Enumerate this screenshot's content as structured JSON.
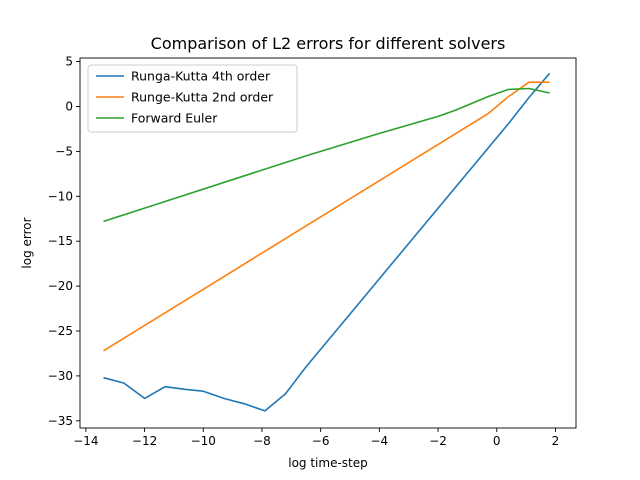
{
  "chart_data": {
    "type": "line",
    "title": "Comparison of L2 errors for different solvers",
    "xlabel": "log time-step",
    "ylabel": "log error",
    "xlim": [
      -14.2,
      2.7
    ],
    "ylim": [
      -35.8,
      5.4
    ],
    "xticks": [
      -14,
      -12,
      -10,
      -8,
      -6,
      -4,
      -2,
      0,
      2
    ],
    "xtick_labels": [
      "−14",
      "−12",
      "−10",
      "−8",
      "−6",
      "−4",
      "−2",
      "0",
      "2"
    ],
    "yticks": [
      5,
      0,
      -5,
      -10,
      -15,
      -20,
      -25,
      -30,
      -35
    ],
    "ytick_labels": [
      "5",
      "0",
      "−5",
      "−10",
      "−15",
      "−20",
      "−25",
      "−30",
      "−35"
    ],
    "grid": false,
    "legend_position": "top-left",
    "series": [
      {
        "name": "Runga-Kutta 4th order",
        "color": "#1f77b4",
        "x": [
          -13.4,
          -12.7,
          -12.0,
          -11.3,
          -10.6,
          -10.0,
          -9.3,
          -8.6,
          -7.9,
          -7.2,
          -6.5,
          0.4,
          1.1,
          1.8
        ],
        "y": [
          -30.2,
          -30.8,
          -32.5,
          -31.2,
          -31.5,
          -31.7,
          -32.5,
          -33.1,
          -33.9,
          -32.0,
          -29.0,
          -1.9,
          1.0,
          3.7
        ]
      },
      {
        "name": "Runge-Kutta 2nd order",
        "color": "#ff7f0e",
        "x": [
          -13.4,
          -0.3,
          0.4,
          1.1,
          1.8
        ],
        "y": [
          -27.2,
          -0.8,
          1.1,
          2.7,
          2.7
        ]
      },
      {
        "name": "Forward Euler",
        "color": "#2ca02c",
        "x": [
          -13.4,
          -6.5,
          -4.0,
          -2.0,
          -1.4,
          -0.3,
          0.4,
          1.1,
          1.8
        ],
        "y": [
          -12.8,
          -5.5,
          -3.0,
          -1.1,
          -0.4,
          1.1,
          1.9,
          2.0,
          1.5
        ]
      }
    ]
  }
}
